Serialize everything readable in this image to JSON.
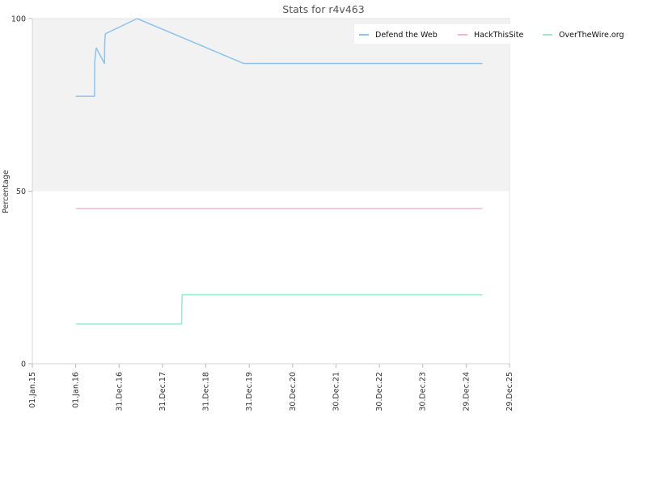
{
  "chart_data": {
    "type": "line",
    "title": "Stats for r4v463",
    "xlabel": "",
    "ylabel": "Percentage",
    "ylim": [
      0,
      100
    ],
    "xlim": [
      "2015-01-01",
      "2025-12-29"
    ],
    "y_ticks": [
      0,
      50,
      100
    ],
    "x_ticks": [
      {
        "date": "2015-01-01",
        "label": "01.Jan.15"
      },
      {
        "date": "2016-01-01",
        "label": "01.Jan.16"
      },
      {
        "date": "2016-12-31",
        "label": "31.Dec.16"
      },
      {
        "date": "2017-12-31",
        "label": "31.Dec.17"
      },
      {
        "date": "2018-12-31",
        "label": "31.Dec.18"
      },
      {
        "date": "2019-12-31",
        "label": "31.Dec.19"
      },
      {
        "date": "2020-12-30",
        "label": "30.Dec.20"
      },
      {
        "date": "2021-12-30",
        "label": "30.Dec.21"
      },
      {
        "date": "2022-12-30",
        "label": "30.Dec.22"
      },
      {
        "date": "2023-12-30",
        "label": "30.Dec.23"
      },
      {
        "date": "2024-12-29",
        "label": "29.Dec.24"
      },
      {
        "date": "2025-12-29",
        "label": "29.Dec.25"
      }
    ],
    "grid": false,
    "shaded_band": {
      "from": 50,
      "to": 100,
      "color": "#f2f2f2"
    },
    "legend": {
      "position": "top-right"
    },
    "series": [
      {
        "name": "Defend the Web",
        "color": "#8cc4ee",
        "points": [
          [
            "2016-01-01",
            77.5
          ],
          [
            "2016-06-07",
            77.5
          ],
          [
            "2016-06-09",
            87.5
          ],
          [
            "2016-06-21",
            91.5
          ],
          [
            "2016-08-30",
            87.0
          ],
          [
            "2016-09-01",
            93.0
          ],
          [
            "2016-09-06",
            95.6
          ],
          [
            "2017-06-01",
            100.0
          ],
          [
            "2019-11-15",
            87.0
          ],
          [
            "2025-05-15",
            87.0
          ]
        ]
      },
      {
        "name": "HackThisSite",
        "color": "#f0b8d0",
        "points": [
          [
            "2016-01-01",
            45.0
          ],
          [
            "2025-05-15",
            45.0
          ]
        ]
      },
      {
        "name": "OverTheWire.org",
        "color": "#9ee6cd",
        "points": [
          [
            "2016-01-01",
            11.5
          ],
          [
            "2018-06-10",
            11.5
          ],
          [
            "2018-06-12",
            17.0
          ],
          [
            "2018-06-15",
            20.0
          ],
          [
            "2025-05-15",
            20.0
          ]
        ]
      }
    ]
  }
}
